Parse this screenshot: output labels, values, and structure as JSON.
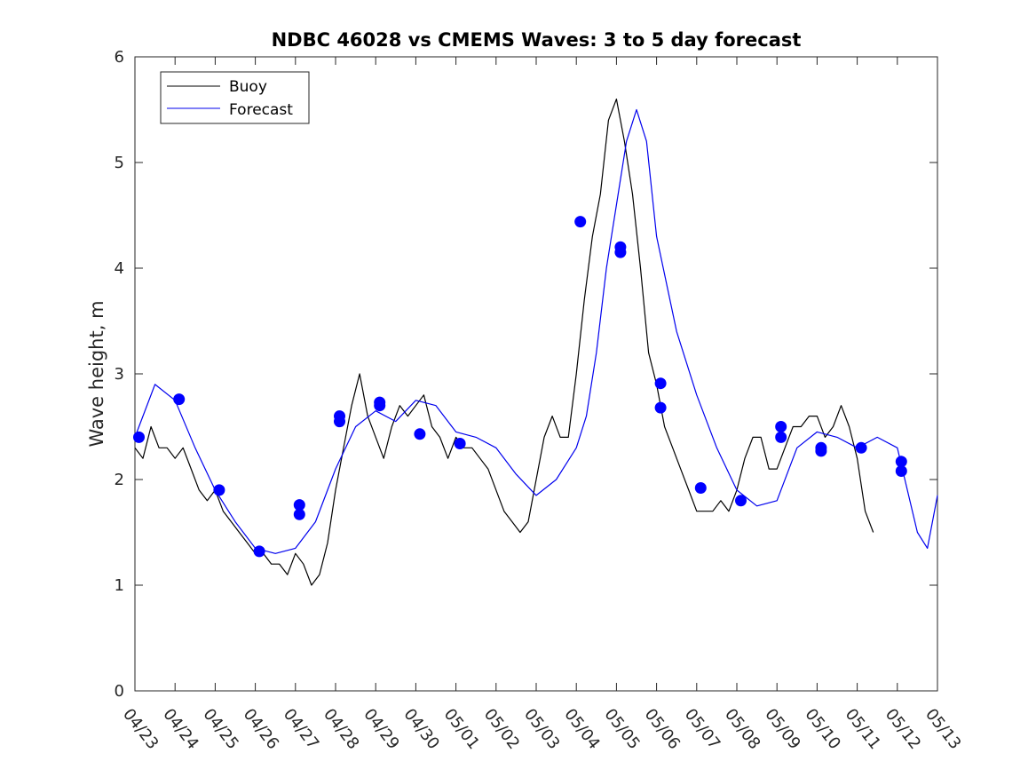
{
  "chart_data": {
    "type": "line",
    "title": "NDBC 46028 vs CMEMS Waves: 3 to 5 day forecast",
    "xlabel": "",
    "ylabel": "Wave height, m",
    "ylim": [
      0,
      6
    ],
    "xlim": [
      "04/23",
      "05/13"
    ],
    "x_ticks": [
      "04/23",
      "04/24",
      "04/25",
      "04/26",
      "04/27",
      "04/28",
      "04/29",
      "04/30",
      "05/01",
      "05/02",
      "05/03",
      "05/04",
      "05/05",
      "05/06",
      "05/07",
      "05/08",
      "05/09",
      "05/10",
      "05/11",
      "05/12",
      "05/13"
    ],
    "y_ticks": [
      0,
      1,
      2,
      3,
      4,
      5,
      6
    ],
    "grid": false,
    "legend": {
      "placement": "top-left",
      "entries": [
        "Buoy",
        "Forecast"
      ]
    },
    "colors": {
      "buoy": "#000000",
      "forecast": "#0000ee",
      "markers": "#0000ff",
      "axes": "#262626"
    },
    "series": [
      {
        "name": "Buoy",
        "x": [
          0.0,
          0.2,
          0.4,
          0.6,
          0.8,
          1.0,
          1.2,
          1.4,
          1.6,
          1.8,
          2.0,
          2.2,
          2.4,
          2.6,
          2.8,
          3.0,
          3.2,
          3.4,
          3.6,
          3.8,
          4.0,
          4.2,
          4.4,
          4.6,
          4.8,
          5.0,
          5.2,
          5.4,
          5.6,
          5.8,
          6.0,
          6.2,
          6.4,
          6.6,
          6.8,
          7.0,
          7.2,
          7.4,
          7.6,
          7.8,
          8.0,
          8.2,
          8.4,
          8.6,
          8.8,
          9.0,
          9.2,
          9.4,
          9.6,
          9.8,
          10.0,
          10.2,
          10.4,
          10.6,
          10.8,
          11.0,
          11.2,
          11.4,
          11.6,
          11.8,
          12.0,
          12.2,
          12.4,
          12.6,
          12.8,
          13.0,
          13.2,
          13.4,
          13.6,
          13.8,
          14.0,
          14.2,
          14.4,
          14.6,
          14.8,
          15.0,
          15.2,
          15.4,
          15.6,
          15.8,
          16.0,
          16.2,
          16.4,
          16.6,
          16.8,
          17.0,
          17.2,
          17.4,
          17.6,
          17.8,
          18.0,
          18.2,
          18.4,
          18.6,
          18.8,
          19.0,
          19.2,
          19.4,
          19.6,
          19.8,
          20.0
        ],
        "values": [
          2.3,
          2.2,
          2.5,
          2.3,
          2.3,
          2.2,
          2.3,
          2.1,
          1.9,
          1.8,
          1.9,
          1.7,
          1.6,
          1.5,
          1.4,
          1.3,
          1.3,
          1.2,
          1.2,
          1.1,
          1.3,
          1.2,
          1.0,
          1.1,
          1.4,
          1.9,
          2.3,
          2.7,
          3.0,
          2.6,
          2.4,
          2.2,
          2.5,
          2.7,
          2.6,
          2.7,
          2.8,
          2.5,
          2.4,
          2.2,
          2.4,
          2.3,
          2.3,
          2.2,
          2.1,
          1.9,
          1.7,
          1.6,
          1.5,
          1.6,
          2.0,
          2.4,
          2.6,
          2.4,
          2.4,
          3.0,
          3.7,
          4.3,
          4.7,
          5.4,
          5.6,
          5.2,
          4.7,
          4.0,
          3.2,
          2.9,
          2.5,
          2.3,
          2.1,
          1.9,
          1.7,
          1.7,
          1.7,
          1.8,
          1.7,
          1.9,
          2.2,
          2.4,
          2.4,
          2.1,
          2.1,
          2.3,
          2.5,
          2.5,
          2.6,
          2.6,
          2.4,
          2.5,
          2.7,
          2.5,
          2.2,
          1.7,
          1.5,
          null,
          null,
          null,
          null,
          null,
          null,
          null,
          null
        ]
      },
      {
        "name": "Forecast",
        "x": [
          0.0,
          0.5,
          1.0,
          1.5,
          2.0,
          2.5,
          3.0,
          3.5,
          4.0,
          4.5,
          5.0,
          5.5,
          6.0,
          6.5,
          7.0,
          7.5,
          8.0,
          8.5,
          9.0,
          9.5,
          10.0,
          10.5,
          11.0,
          11.25,
          11.5,
          11.75,
          12.0,
          12.25,
          12.5,
          12.75,
          13.0,
          13.5,
          14.0,
          14.5,
          15.0,
          15.5,
          16.0,
          16.5,
          17.0,
          17.5,
          18.0,
          18.5,
          19.0,
          19.25,
          19.5,
          19.75,
          20.0
        ],
        "values": [
          2.4,
          2.9,
          2.75,
          2.3,
          1.9,
          1.6,
          1.35,
          1.3,
          1.35,
          1.6,
          2.1,
          2.5,
          2.65,
          2.55,
          2.75,
          2.7,
          2.45,
          2.4,
          2.3,
          2.05,
          1.85,
          2.0,
          2.3,
          2.6,
          3.2,
          4.0,
          4.6,
          5.2,
          5.5,
          5.2,
          4.3,
          3.4,
          2.8,
          2.3,
          1.9,
          1.75,
          1.8,
          2.3,
          2.45,
          2.4,
          2.3,
          2.4,
          2.3,
          1.9,
          1.5,
          1.35,
          1.85
        ]
      }
    ],
    "forecast_markers": {
      "x": [
        0.1,
        1.1,
        2.1,
        3.1,
        4.1,
        4.1,
        5.1,
        5.1,
        6.1,
        6.1,
        7.1,
        8.1,
        11.1,
        12.1,
        12.1,
        13.1,
        13.1,
        14.1,
        15.1,
        16.1,
        16.1,
        17.1,
        17.1,
        18.1,
        19.1,
        19.1
      ],
      "values": [
        2.4,
        2.76,
        1.9,
        1.32,
        1.76,
        1.67,
        2.6,
        2.55,
        2.73,
        2.7,
        2.43,
        2.34,
        4.44,
        4.2,
        4.15,
        2.91,
        2.68,
        1.92,
        1.8,
        2.5,
        2.4,
        2.3,
        2.27,
        2.3,
        2.17,
        2.08
      ]
    }
  }
}
